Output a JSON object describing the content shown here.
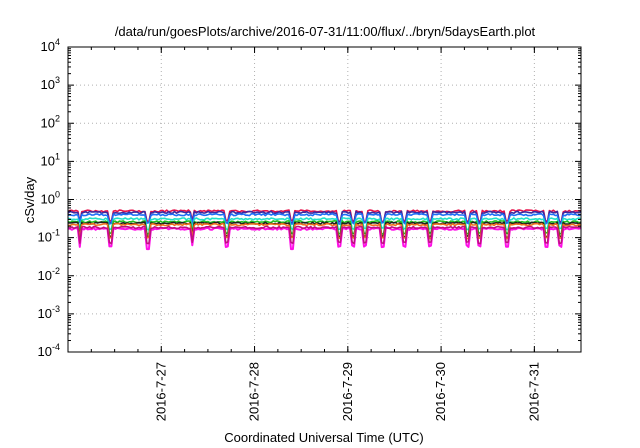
{
  "chart_data": {
    "type": "line",
    "title": "/data/run/goesPlots/archive/2016-07-31/11:00/flux/../bryn/5daysEarth.plot",
    "xlabel": "Coordinated Universal Time (UTC)",
    "ylabel": "cSv/day",
    "yscale": "log",
    "ylim": [
      0.0001,
      10000
    ],
    "xlim": [
      "2016-07-26 00:00",
      "2016-07-31 12:00"
    ],
    "grid": true,
    "y_ticks": [
      {
        "base": "10",
        "exp": "-4"
      },
      {
        "base": "10",
        "exp": "-3"
      },
      {
        "base": "10",
        "exp": "-2"
      },
      {
        "base": "10",
        "exp": "-1"
      },
      {
        "base": "10",
        "exp": "0"
      },
      {
        "base": "10",
        "exp": "1"
      },
      {
        "base": "10",
        "exp": "2"
      },
      {
        "base": "10",
        "exp": "3"
      },
      {
        "base": "10",
        "exp": "4"
      }
    ],
    "x_ticks": [
      {
        "label": "2016-7-27",
        "time": "2016-07-27 00:00"
      },
      {
        "label": "2016-7-28",
        "time": "2016-07-28 00:00"
      },
      {
        "label": "2016-7-29",
        "time": "2016-07-29 00:00"
      },
      {
        "label": "2016-7-30",
        "time": "2016-07-30 00:00"
      },
      {
        "label": "2016-7-31",
        "time": "2016-07-31 00:00"
      }
    ],
    "series": [
      {
        "color": "#e8104a",
        "level": 0.5,
        "dip_scale": 0.55
      },
      {
        "color": "#3a2aa0",
        "level": 0.46,
        "dip_scale": 0.55
      },
      {
        "color": "#1e6ff5",
        "level": 0.4,
        "dip_scale": 0.6
      },
      {
        "color": "#22e0c8",
        "level": 0.31,
        "dip_scale": 0.55
      },
      {
        "color": "#20c020",
        "level": 0.26,
        "dip_scale": 0.5
      },
      {
        "color": "#202020",
        "level": 0.24,
        "dip_scale": 0.45
      },
      {
        "color": "#f07020",
        "level": 0.22,
        "dip_scale": 0.45
      },
      {
        "color": "#ff10e8",
        "level": 0.17,
        "dip_scale": 0.35
      },
      {
        "color": "#c01080",
        "level": 0.185,
        "dip_scale": 0.4
      }
    ],
    "deep_dips": [
      {
        "time": "2016-07-26 20:30",
        "value": 0.05
      },
      {
        "time": "2016-07-28 09:30",
        "value": 0.05
      }
    ],
    "dips": [
      "2016-07-26 03:00",
      "2016-07-26 11:00",
      "2016-07-26 20:30",
      "2016-07-27 08:00",
      "2016-07-27 17:00",
      "2016-07-28 09:30",
      "2016-07-28 22:00",
      "2016-07-29 01:30",
      "2016-07-29 04:30",
      "2016-07-29 09:00",
      "2016-07-29 14:30",
      "2016-07-29 21:00",
      "2016-07-30 07:00",
      "2016-07-30 10:00",
      "2016-07-30 17:00",
      "2016-07-31 03:00",
      "2016-07-31 06:30"
    ]
  }
}
